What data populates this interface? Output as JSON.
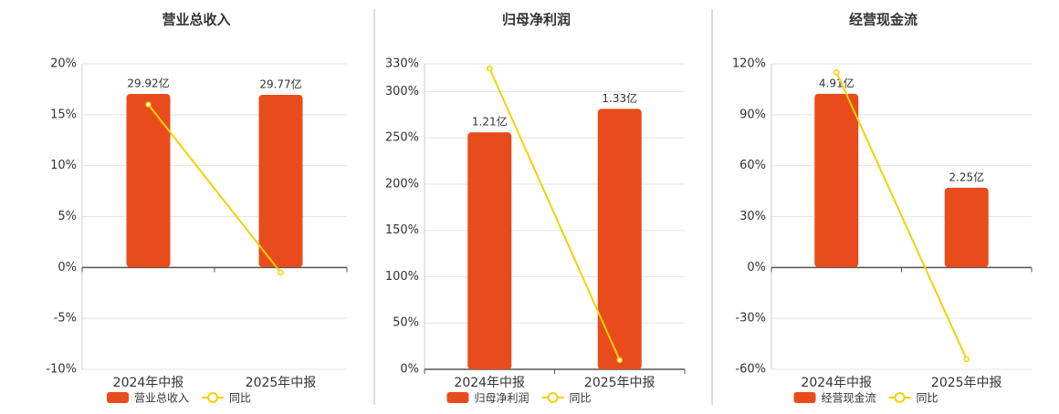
{
  "chart_data": [
    {
      "type": "bar_line",
      "title": "营业总收入",
      "categories": [
        "2024年中报",
        "2025年中报"
      ],
      "series": [
        {
          "name": "营业总收入",
          "color": "#e84c1c",
          "axis": "y2",
          "values": [
            29.92,
            29.77
          ],
          "value_labels": [
            "29.92亿",
            "29.77亿"
          ]
        },
        {
          "name": "同比",
          "color": "#f5d000",
          "values": [
            16.0,
            -0.5
          ]
        }
      ],
      "ylim": [
        -10,
        20
      ],
      "yticks": [
        {
          "value": -10,
          "label": "-10%"
        },
        {
          "value": -5,
          "label": "-5%"
        },
        {
          "value": 0,
          "label": "0%"
        },
        {
          "value": 5,
          "label": "5%"
        },
        {
          "value": 10,
          "label": "10%"
        },
        {
          "value": 15,
          "label": "15%"
        },
        {
          "value": 20,
          "label": "20%"
        }
      ],
      "y2lim": [
        -17.64,
        35.12
      ],
      "grid": true
    },
    {
      "type": "bar_line",
      "title": "归母净利润",
      "categories": [
        "2024年中报",
        "2025年中报"
      ],
      "series": [
        {
          "name": "归母净利润",
          "color": "#e84c1c",
          "axis": "y2",
          "values": [
            1.21,
            1.33
          ],
          "value_labels": [
            "1.21亿",
            "1.33亿"
          ]
        },
        {
          "name": "同比",
          "color": "#f5d000",
          "values": [
            325,
            10
          ]
        }
      ],
      "ylim": [
        0,
        330
      ],
      "yticks": [
        {
          "value": 0,
          "label": "0%"
        },
        {
          "value": 50,
          "label": "50%"
        },
        {
          "value": 100,
          "label": "100%"
        },
        {
          "value": 150,
          "label": "150%"
        },
        {
          "value": 200,
          "label": "200%"
        },
        {
          "value": 250,
          "label": "250%"
        },
        {
          "value": 300,
          "label": "300%"
        },
        {
          "value": 330,
          "label": "330%"
        }
      ],
      "y2lim": [
        0,
        1.56
      ],
      "grid": true
    },
    {
      "type": "bar_line",
      "title": "经营现金流",
      "categories": [
        "2024年中报",
        "2025年中报"
      ],
      "series": [
        {
          "name": "经营现金流",
          "color": "#e84c1c",
          "axis": "y2",
          "values": [
            4.91,
            2.25
          ],
          "value_labels": [
            "4.91亿",
            "2.25亿"
          ]
        },
        {
          "name": "同比",
          "color": "#f5d000",
          "values": [
            115,
            -54
          ]
        }
      ],
      "ylim": [
        -60,
        120
      ],
      "yticks": [
        {
          "value": -60,
          "label": "-60%"
        },
        {
          "value": -30,
          "label": "-30%"
        },
        {
          "value": 0,
          "label": "0%"
        },
        {
          "value": 30,
          "label": "30%"
        },
        {
          "value": 60,
          "label": "60%"
        },
        {
          "value": 90,
          "label": "90%"
        },
        {
          "value": 120,
          "label": "120%"
        }
      ],
      "y2lim": [
        -2.89,
        5.76
      ],
      "grid": true
    }
  ]
}
